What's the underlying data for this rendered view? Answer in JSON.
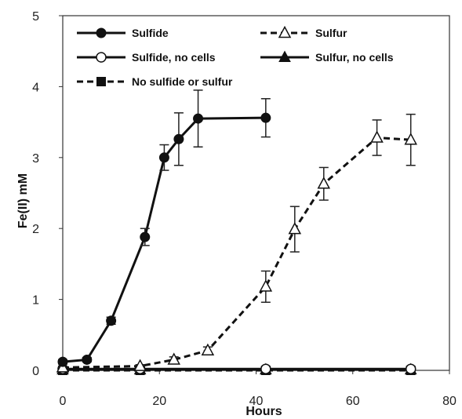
{
  "chart_data": {
    "type": "line",
    "xlabel": "Hours",
    "ylabel": "Fe(II) mM",
    "xlim": [
      0,
      80
    ],
    "ylim": [
      0,
      5
    ],
    "xticks": [
      0,
      20,
      40,
      60,
      80
    ],
    "yticks": [
      0,
      1,
      2,
      3,
      4,
      5
    ],
    "grid": false,
    "legend_position": "top, inside plot",
    "series": [
      {
        "name": "Sulfide",
        "line": "solid",
        "marker": "circle-filled",
        "x": [
          0,
          5,
          10,
          17,
          21,
          24,
          28,
          42
        ],
        "y": [
          0.12,
          0.15,
          0.7,
          1.88,
          3.0,
          3.26,
          3.55,
          3.56
        ],
        "err": [
          0.03,
          0.03,
          0.05,
          0.12,
          0.18,
          0.37,
          0.4,
          0.27
        ]
      },
      {
        "name": "Sulfur",
        "line": "dashed",
        "marker": "triangle-open",
        "x": [
          0,
          16,
          23,
          30,
          42,
          48,
          54,
          65,
          72
        ],
        "y": [
          0.04,
          0.06,
          0.15,
          0.28,
          1.18,
          1.99,
          2.63,
          3.28,
          3.25
        ],
        "err": [
          0.02,
          0.02,
          0.04,
          0.05,
          0.22,
          0.32,
          0.23,
          0.25,
          0.36
        ]
      },
      {
        "name": "Sulfide, no cells",
        "line": "solid",
        "marker": "circle-open",
        "x": [
          0,
          16,
          42,
          72
        ],
        "y": [
          0.02,
          0.02,
          0.02,
          0.02
        ],
        "err": []
      },
      {
        "name": "Sulfur, no cells",
        "line": "solid",
        "marker": "triangle-filled",
        "x": [
          0,
          16,
          42,
          72
        ],
        "y": [
          0.01,
          0.01,
          0.01,
          0.01
        ],
        "err": []
      },
      {
        "name": "No sulfide or sulfur",
        "line": "dashed",
        "marker": "square-filled",
        "x": [
          0,
          16,
          42,
          72
        ],
        "y": [
          0.0,
          0.0,
          0.0,
          0.0
        ],
        "err": []
      }
    ]
  }
}
